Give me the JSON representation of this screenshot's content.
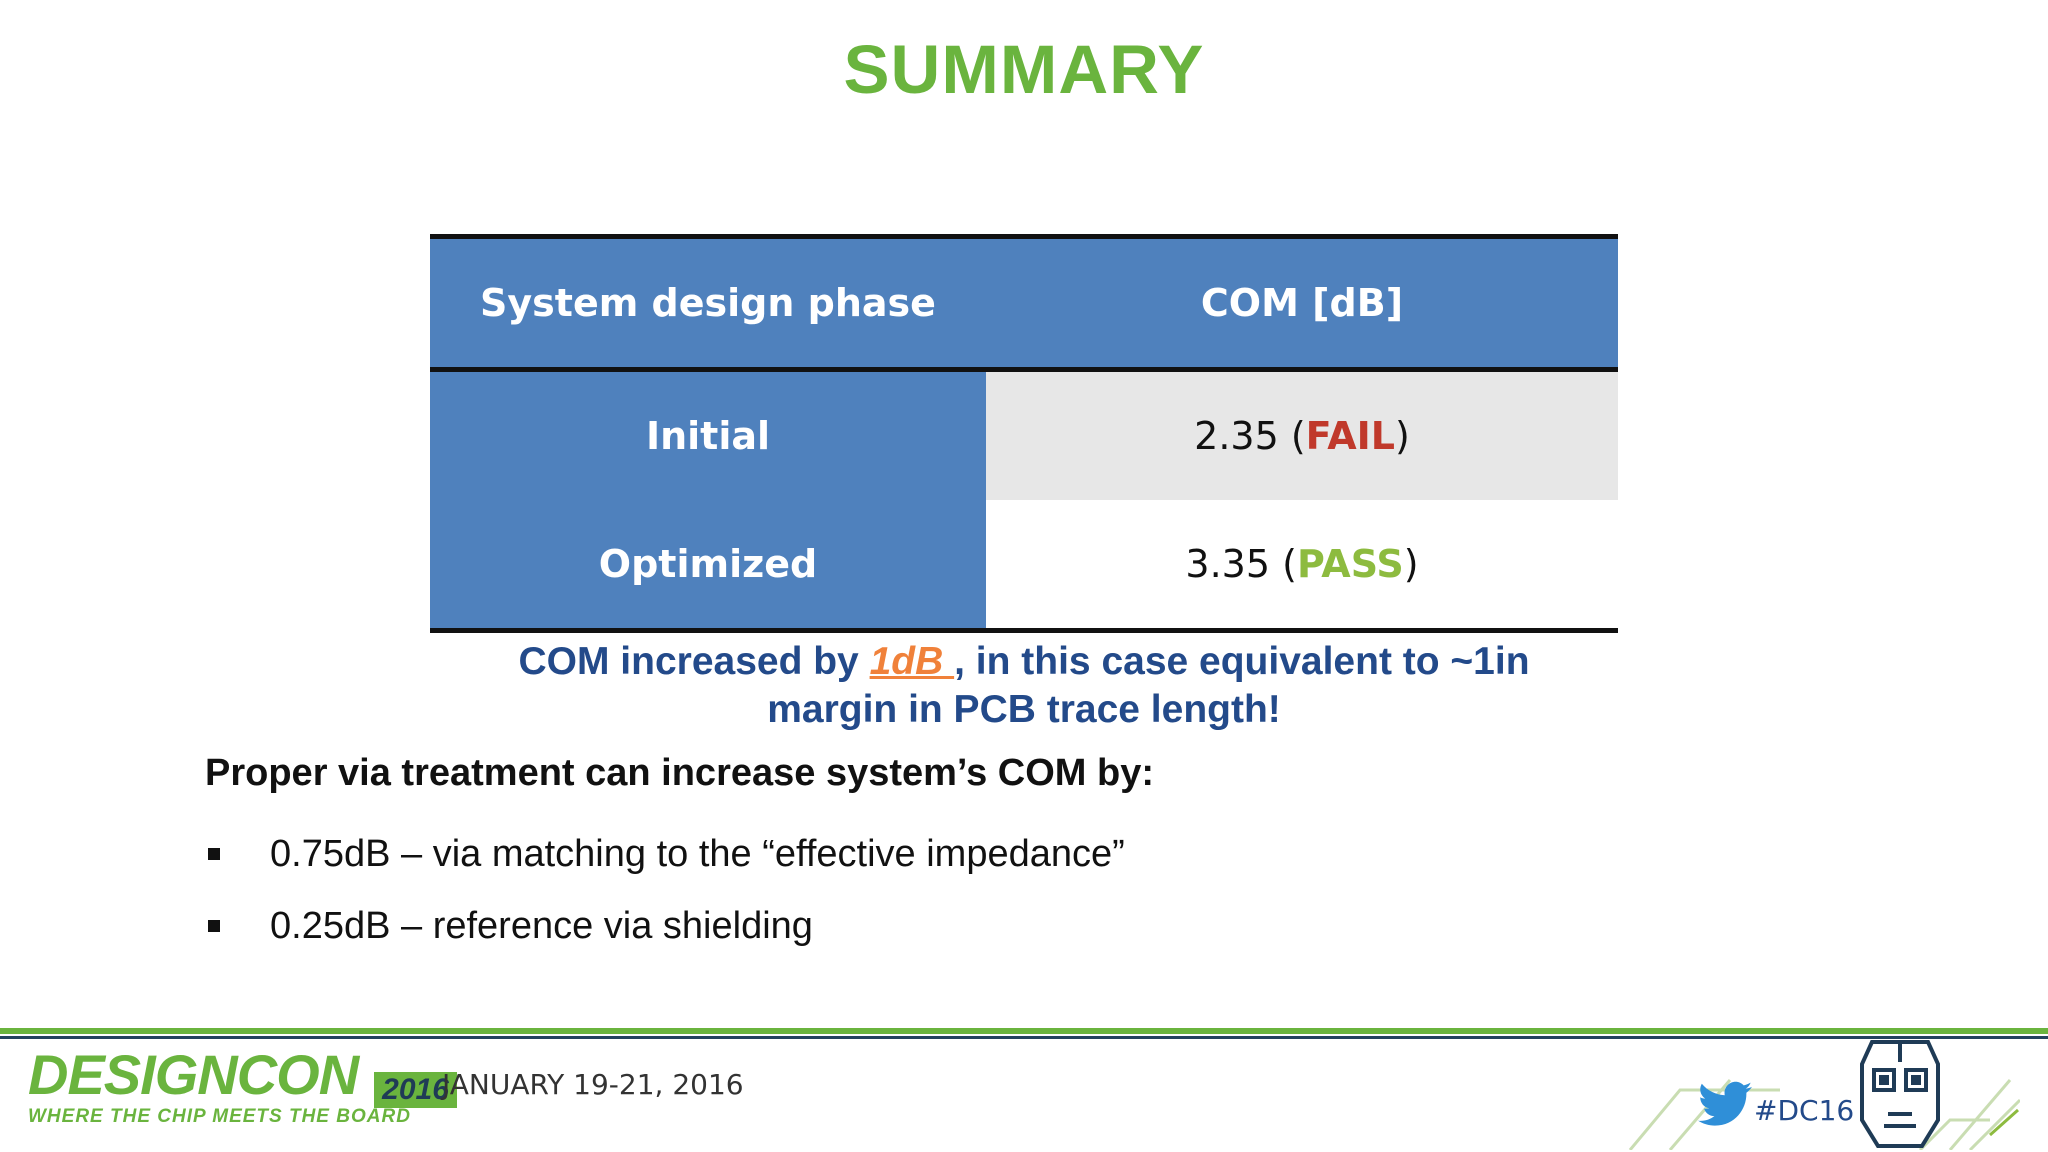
{
  "title": "SUMMARY",
  "table": {
    "headers": [
      "System design phase",
      "COM [dB]"
    ],
    "rows": [
      {
        "phase": "Initial",
        "value": "2.35",
        "status": "FAIL"
      },
      {
        "phase": "Optimized",
        "value": "3.35",
        "status": "PASS"
      }
    ]
  },
  "note": {
    "before": "COM increased by ",
    "highlight": "1dB ",
    "after": ", in this case equivalent to ~1in",
    "line2": "margin in PCB trace length!"
  },
  "lead": "Proper via treatment can increase system’s COM by:",
  "bullets": [
    "0.75dB – via matching to the “effective impedance”",
    "0.25dB – reference via shielding"
  ],
  "footer": {
    "logo_text": "DESIGNCON",
    "logo_year": "2016",
    "tagline": "WHERE THE CHIP MEETS THE BOARD",
    "date": "JANUARY 19-21, 2016",
    "hashtag": "#DC16"
  },
  "colors": {
    "title": "#6ab43e",
    "table_header": "#4f81bd",
    "fail": "#c0392b",
    "pass": "#8dbb3f",
    "note": "#234a8a",
    "highlight": "#f0813a"
  }
}
